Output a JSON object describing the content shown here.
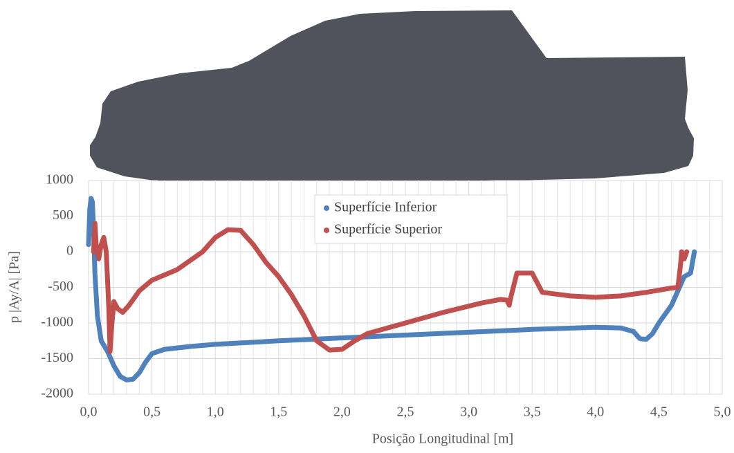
{
  "chart_data": {
    "type": "scatter",
    "x_label": "Posição Longitudinal [m]",
    "y_label": "p |Ay/A| [Pa]",
    "xlim": [
      0,
      5
    ],
    "ylim": [
      -2000,
      1000
    ],
    "xticks": [
      {
        "value": 0,
        "label": "0,0"
      },
      {
        "value": 0.5,
        "label": "0,5"
      },
      {
        "value": 1,
        "label": "1,0"
      },
      {
        "value": 1.5,
        "label": "1,5"
      },
      {
        "value": 2,
        "label": "2,0"
      },
      {
        "value": 2.5,
        "label": "2,5"
      },
      {
        "value": 3,
        "label": "3,0"
      },
      {
        "value": 3.5,
        "label": "3,5"
      },
      {
        "value": 4,
        "label": "4,0"
      },
      {
        "value": 4.5,
        "label": "4,5"
      },
      {
        "value": 5,
        "label": "5,0"
      }
    ],
    "x_minor_gridlines": [
      0.1,
      0.2,
      0.3,
      0.4,
      0.6,
      0.7,
      0.8,
      0.9,
      1.1,
      1.2,
      1.3,
      1.4,
      1.6,
      1.7,
      1.8,
      1.9,
      2.1,
      2.2,
      2.3,
      2.4,
      2.6,
      2.7,
      2.8,
      2.9,
      3.1,
      3.2,
      3.3,
      3.4,
      3.6,
      3.7,
      3.8,
      3.9,
      4.1,
      4.2,
      4.3,
      4.4,
      4.6,
      4.7,
      4.8,
      4.9
    ],
    "yticks": [
      1000,
      500,
      0,
      -500,
      -1000,
      -1500,
      -2000
    ],
    "grid": true,
    "legend": "top-center",
    "series": [
      {
        "name": "Superfície Inferior",
        "color": "#4f81bd",
        "x": [
          0.0,
          0.01,
          0.02,
          0.03,
          0.04,
          0.05,
          0.07,
          0.1,
          0.15,
          0.2,
          0.25,
          0.3,
          0.35,
          0.4,
          0.45,
          0.5,
          0.6,
          0.8,
          1.0,
          1.5,
          2.0,
          2.5,
          3.0,
          3.5,
          4.0,
          4.2,
          4.3,
          4.35,
          4.4,
          4.45,
          4.5,
          4.6,
          4.65,
          4.7,
          4.75,
          4.78
        ],
        "values": [
          100,
          600,
          750,
          700,
          300,
          -300,
          -900,
          -1250,
          -1400,
          -1600,
          -1750,
          -1800,
          -1790,
          -1700,
          -1550,
          -1430,
          -1370,
          -1330,
          -1300,
          -1250,
          -1210,
          -1170,
          -1130,
          -1090,
          -1060,
          -1070,
          -1120,
          -1220,
          -1230,
          -1150,
          -1000,
          -750,
          -550,
          -350,
          -300,
          0
        ]
      },
      {
        "name": "Superfície Superior",
        "color": "#c0504d",
        "x": [
          0.04,
          0.05,
          0.06,
          0.08,
          0.1,
          0.12,
          0.14,
          0.16,
          0.17,
          0.18,
          0.2,
          0.23,
          0.27,
          0.32,
          0.4,
          0.5,
          0.7,
          0.9,
          1.0,
          1.1,
          1.2,
          1.3,
          1.4,
          1.5,
          1.6,
          1.7,
          1.8,
          1.9,
          2.0,
          2.1,
          2.2,
          2.5,
          2.8,
          3.1,
          3.25,
          3.3,
          3.32,
          3.33,
          3.38,
          3.5,
          3.58,
          3.8,
          4.0,
          4.2,
          4.4,
          4.6,
          4.65,
          4.67,
          4.68,
          4.7,
          4.72
        ],
        "values": [
          0,
          400,
          100,
          -100,
          100,
          200,
          0,
          -800,
          -1400,
          -1100,
          -700,
          -800,
          -850,
          -750,
          -550,
          -400,
          -250,
          0,
          200,
          310,
          300,
          100,
          -150,
          -350,
          -600,
          -900,
          -1250,
          -1380,
          -1370,
          -1250,
          -1150,
          -1000,
          -850,
          -720,
          -670,
          -680,
          -750,
          -650,
          -300,
          -300,
          -570,
          -620,
          -640,
          -620,
          -570,
          -510,
          -500,
          -200,
          0,
          -100,
          0
        ]
      }
    ]
  }
}
